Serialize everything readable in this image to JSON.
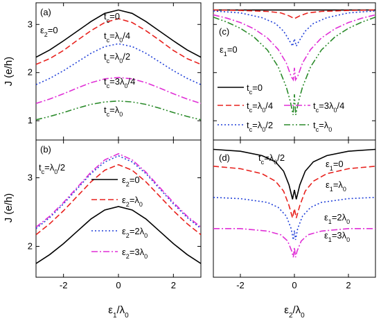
{
  "figure": {
    "y_axis_label_top": "J (e/h)",
    "y_axis_label_bottom": "J (e/h)",
    "x_axis_label_left": "ε1/λ0",
    "x_axis_label_right": "ε2/λ0"
  },
  "chart_data": [
    {
      "panel": "(a)",
      "type": "line",
      "xlim": [
        -3,
        3
      ],
      "ylim": [
        0.6,
        3.45
      ],
      "xticks": [
        -2,
        0,
        2
      ],
      "yticks": [
        1,
        2,
        3
      ],
      "show_xtick_labels": false,
      "condition": "ε2=0",
      "series": [
        {
          "name": "tc=0",
          "color": "#000000",
          "dash": "solid",
          "x": [
            -3,
            -2.5,
            -2,
            -1.5,
            -1,
            -0.5,
            0,
            0.5,
            1,
            1.5,
            2,
            2.5,
            3
          ],
          "y": [
            2.32,
            2.47,
            2.66,
            2.86,
            3.06,
            3.23,
            3.3,
            3.23,
            3.06,
            2.86,
            2.66,
            2.47,
            2.32
          ]
        },
        {
          "name": "tc=λ0/4",
          "color": "#e8211d",
          "dash": "dashed",
          "x": [
            -3,
            -2.5,
            -2,
            -1.5,
            -1,
            -0.5,
            0,
            0.5,
            1,
            1.5,
            2,
            2.5,
            3
          ],
          "y": [
            2.17,
            2.29,
            2.46,
            2.67,
            2.87,
            3.04,
            3.12,
            3.04,
            2.87,
            2.67,
            2.46,
            2.29,
            2.17
          ]
        },
        {
          "name": "tc=λ0/2",
          "color": "#1f3fd8",
          "dash": "dotted",
          "x": [
            -3,
            -2.5,
            -2,
            -1.5,
            -1,
            -0.5,
            0,
            0.5,
            1,
            1.5,
            2,
            2.5,
            3
          ],
          "y": [
            1.75,
            1.88,
            2.04,
            2.22,
            2.4,
            2.54,
            2.6,
            2.54,
            2.4,
            2.22,
            2.04,
            1.88,
            1.75
          ]
        },
        {
          "name": "tc=3λ0/4",
          "color": "#e02fd6",
          "dash": "dashdot",
          "x": [
            -3,
            -2.5,
            -2,
            -1.5,
            -1,
            -0.5,
            0,
            0.5,
            1,
            1.5,
            2,
            2.5,
            3
          ],
          "y": [
            1.36,
            1.45,
            1.56,
            1.68,
            1.79,
            1.87,
            1.9,
            1.87,
            1.79,
            1.68,
            1.56,
            1.45,
            1.36
          ]
        },
        {
          "name": "tc=λ0",
          "color": "#2a8a2a",
          "dash": "dashdotdot",
          "x": [
            -3,
            -2.5,
            -2,
            -1.5,
            -1,
            -0.5,
            0,
            0.5,
            1,
            1.5,
            2,
            2.5,
            3
          ],
          "y": [
            1.02,
            1.09,
            1.17,
            1.26,
            1.34,
            1.39,
            1.41,
            1.39,
            1.34,
            1.26,
            1.17,
            1.09,
            1.02
          ]
        }
      ],
      "annotations": [
        {
          "text": "tc=0",
          "at": [
            -1.2,
            3.35
          ]
        },
        {
          "text": "tc=λ0/4",
          "at": [
            -0.6,
            2.92
          ]
        },
        {
          "text": "tc=λ0/2",
          "at": [
            -0.6,
            2.48
          ]
        },
        {
          "text": "tc=3λ0/4",
          "at": [
            -0.6,
            1.72
          ]
        },
        {
          "text": "tc=λ0",
          "at": [
            -0.6,
            1.22
          ]
        }
      ]
    },
    {
      "panel": "(b)",
      "type": "line",
      "xlim": [
        -3,
        3
      ],
      "ylim": [
        1.55,
        3.55
      ],
      "xticks": [
        -2,
        0,
        2
      ],
      "yticks": [
        2,
        3
      ],
      "show_xtick_labels": true,
      "condition": "tc=λ0/2",
      "series": [
        {
          "name": "ε2=0",
          "color": "#000000",
          "dash": "solid",
          "x": [
            -3,
            -2.5,
            -2,
            -1.5,
            -1,
            -0.5,
            0,
            0.5,
            1,
            1.5,
            2,
            2.5,
            3
          ],
          "y": [
            1.75,
            1.88,
            2.04,
            2.22,
            2.4,
            2.53,
            2.58,
            2.53,
            2.4,
            2.22,
            2.04,
            1.88,
            1.75
          ]
        },
        {
          "name": "ε2=λ0",
          "color": "#e8211d",
          "dash": "dashed",
          "x": [
            -3,
            -2.5,
            -2,
            -1.5,
            -1,
            -0.5,
            0,
            0.5,
            1,
            1.5,
            2,
            2.5,
            3
          ],
          "y": [
            2.17,
            2.33,
            2.52,
            2.73,
            2.94,
            3.11,
            3.19,
            3.11,
            2.94,
            2.73,
            2.52,
            2.33,
            2.17
          ]
        },
        {
          "name": "ε2=2λ0",
          "color": "#1f3fd8",
          "dash": "dotted",
          "x": [
            -3,
            -2.5,
            -2,
            -1.5,
            -1,
            -0.5,
            0,
            0.5,
            1,
            1.5,
            2,
            2.5,
            3
          ],
          "y": [
            2.26,
            2.42,
            2.62,
            2.84,
            3.06,
            3.23,
            3.32,
            3.23,
            3.06,
            2.84,
            2.62,
            2.42,
            2.26
          ]
        },
        {
          "name": "ε2=3λ0",
          "color": "#e02fd6",
          "dash": "dashdot",
          "x": [
            -3,
            -2.5,
            -2,
            -1.5,
            -1,
            -0.5,
            0,
            0.5,
            1,
            1.5,
            2,
            2.5,
            3
          ],
          "y": [
            2.28,
            2.44,
            2.64,
            2.86,
            3.08,
            3.26,
            3.35,
            3.26,
            3.08,
            2.86,
            2.64,
            2.44,
            2.28
          ]
        }
      ],
      "legend": [
        {
          "text": "ε2=0"
        },
        {
          "text": "ε2=λ0"
        },
        {
          "text": "ε2=2λ0"
        },
        {
          "text": "ε2=3λ0"
        }
      ]
    },
    {
      "panel": "(c)",
      "type": "line",
      "xlim": [
        -3,
        3
      ],
      "ylim": [
        0.6,
        3.45
      ],
      "xticks": [
        -2,
        0,
        2
      ],
      "yticks": [
        1,
        2,
        3
      ],
      "show_xtick_labels": false,
      "condition": "ε1=0",
      "series": [
        {
          "name": "tc=0",
          "color": "#000000",
          "dash": "solid",
          "x": [
            -3,
            -1.5,
            -0.5,
            -0.2,
            -0.08,
            0,
            0.08,
            0.2,
            0.5,
            1.5,
            3
          ],
          "y": [
            3.3,
            3.3,
            3.3,
            3.3,
            3.3,
            3.3,
            3.3,
            3.3,
            3.3,
            3.3,
            3.3
          ]
        },
        {
          "name": "tc=λ0/4",
          "color": "#e8211d",
          "dash": "dashed",
          "x": [
            -3,
            -2,
            -1,
            -0.5,
            -0.2,
            0,
            0.2,
            0.5,
            1,
            2,
            3
          ],
          "y": [
            3.3,
            3.29,
            3.27,
            3.24,
            3.18,
            3.12,
            3.18,
            3.24,
            3.27,
            3.29,
            3.3
          ]
        },
        {
          "name": "tc=λ0/2",
          "color": "#1f3fd8",
          "dash": "dotted",
          "x": [
            -3,
            -2,
            -1.2,
            -0.7,
            -0.4,
            -0.2,
            -0.07,
            0,
            0.07,
            0.2,
            0.4,
            0.7,
            1.2,
            2,
            3
          ],
          "y": [
            3.28,
            3.24,
            3.14,
            3.02,
            2.86,
            2.68,
            2.55,
            2.7,
            2.55,
            2.68,
            2.86,
            3.02,
            3.14,
            3.24,
            3.28
          ]
        },
        {
          "name": "tc=3λ0/4",
          "color": "#e02fd6",
          "dash": "dashdot",
          "x": [
            -3,
            -2.5,
            -2,
            -1.5,
            -1,
            -0.6,
            -0.3,
            -0.12,
            -0.04,
            0,
            0.04,
            0.12,
            0.3,
            0.6,
            1,
            1.5,
            2,
            2.5,
            3
          ],
          "y": [
            3.2,
            3.13,
            3.04,
            2.91,
            2.72,
            2.48,
            2.2,
            1.92,
            1.85,
            2.1,
            1.85,
            1.92,
            2.2,
            2.48,
            2.72,
            2.91,
            3.04,
            3.13,
            3.2
          ]
        },
        {
          "name": "tc=λ0",
          "color": "#2a8a2a",
          "dash": "dashdotdot",
          "x": [
            -3,
            -2.5,
            -2,
            -1.5,
            -1,
            -0.6,
            -0.3,
            -0.15,
            -0.05,
            0,
            0.05,
            0.15,
            0.3,
            0.6,
            1,
            1.5,
            2,
            2.5,
            3
          ],
          "y": [
            3.15,
            3.05,
            2.92,
            2.74,
            2.47,
            2.12,
            1.7,
            1.4,
            1.12,
            1.55,
            1.12,
            1.4,
            1.7,
            2.12,
            2.47,
            2.74,
            2.92,
            3.05,
            3.15
          ]
        }
      ],
      "legend": [
        {
          "text": "tc=0"
        },
        {
          "text": "tc=λ0/4"
        },
        {
          "text": "tc=3λ0/4"
        },
        {
          "text": "tc=λ0/2"
        },
        {
          "text": "tc=λ0"
        }
      ]
    },
    {
      "panel": "(d)",
      "type": "line",
      "xlim": [
        -3,
        3
      ],
      "ylim": [
        1.4,
        3.6
      ],
      "xticks": [
        -2,
        0,
        2
      ],
      "yticks": [],
      "show_xtick_labels": true,
      "condition": "tc=λ0/2",
      "series": [
        {
          "name": "ε1=0",
          "color": "#000000",
          "dash": "solid",
          "x": [
            -3,
            -2,
            -1.2,
            -0.7,
            -0.4,
            -0.2,
            -0.07,
            0,
            0.07,
            0.2,
            0.4,
            0.7,
            1.2,
            2,
            3
          ],
          "y": [
            3.45,
            3.42,
            3.35,
            3.25,
            3.1,
            2.88,
            2.65,
            2.8,
            2.65,
            2.88,
            3.1,
            3.25,
            3.35,
            3.42,
            3.45
          ]
        },
        {
          "name": "ε1=λ0",
          "color": "#e8211d",
          "dash": "dashed",
          "x": [
            -3,
            -2,
            -1.2,
            -0.7,
            -0.4,
            -0.2,
            -0.07,
            0,
            0.07,
            0.2,
            0.4,
            0.7,
            1.2,
            2,
            3
          ],
          "y": [
            3.18,
            3.14,
            3.06,
            2.94,
            2.78,
            2.55,
            2.35,
            2.5,
            2.35,
            2.55,
            2.78,
            2.94,
            3.06,
            3.14,
            3.18
          ]
        },
        {
          "name": "ε1=2λ0",
          "color": "#1f3fd8",
          "dash": "dotted",
          "x": [
            -3,
            -2,
            -1,
            -0.6,
            -0.3,
            -0.12,
            -0.04,
            0,
            0.04,
            0.12,
            0.3,
            0.6,
            1,
            2,
            3
          ],
          "y": [
            2.68,
            2.66,
            2.6,
            2.52,
            2.38,
            2.18,
            2.0,
            2.15,
            2.0,
            2.18,
            2.38,
            2.52,
            2.6,
            2.66,
            2.68
          ]
        },
        {
          "name": "ε1=3λ0",
          "color": "#e02fd6",
          "dash": "dashdot",
          "x": [
            -3,
            -2,
            -1,
            -0.5,
            -0.25,
            -0.1,
            -0.04,
            0,
            0.04,
            0.1,
            0.25,
            0.5,
            1,
            2,
            3
          ],
          "y": [
            2.18,
            2.18,
            2.14,
            2.08,
            1.98,
            1.82,
            1.72,
            1.88,
            1.72,
            1.82,
            1.98,
            2.08,
            2.14,
            2.18,
            2.18
          ]
        }
      ],
      "annotations": [
        {
          "text": "ε1=0"
        },
        {
          "text": "ε1=λ0"
        },
        {
          "text": "ε1=2λ0"
        },
        {
          "text": "ε1=3λ0"
        }
      ]
    }
  ]
}
